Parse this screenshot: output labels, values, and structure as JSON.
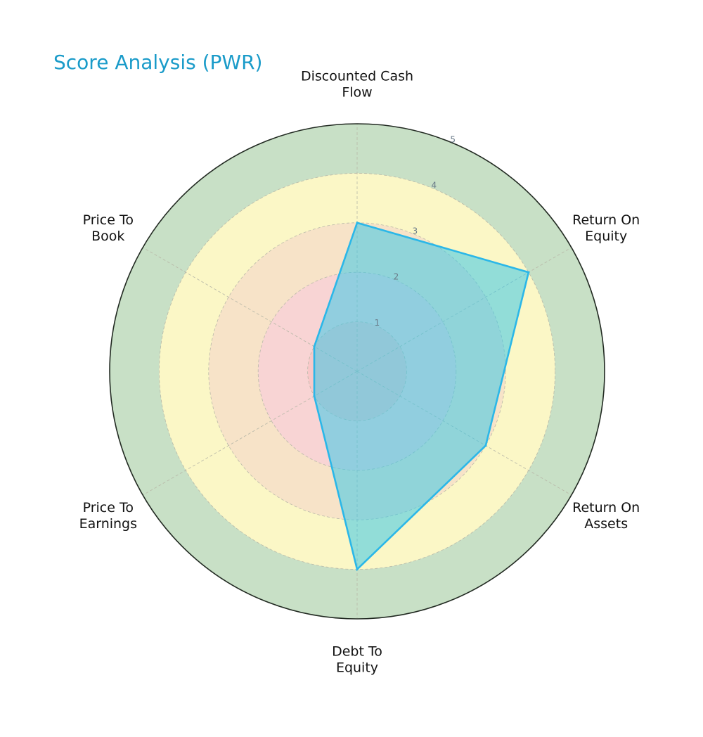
{
  "chart_data": {
    "type": "radar",
    "title": "Score Analysis (PWR)",
    "categories": [
      "Discounted Cash Flow",
      "Return On Equity",
      "Return On Assets",
      "Debt To Equity",
      "Price To Earnings",
      "Price To Book"
    ],
    "category_lines": [
      [
        "Discounted Cash",
        "Flow"
      ],
      [
        "Return On",
        "Equity"
      ],
      [
        "Return On",
        "Assets"
      ],
      [
        "Debt To",
        "Equity"
      ],
      [
        "Price To",
        "Earnings"
      ],
      [
        "Price To",
        "Book"
      ]
    ],
    "values": [
      3,
      4,
      3,
      4,
      1,
      1
    ],
    "rlim": [
      0,
      5
    ],
    "r_ticks": [
      "1",
      "2",
      "3",
      "4",
      "5"
    ],
    "bands": [
      {
        "from": 0,
        "to": 1,
        "color": "#f8c8c8"
      },
      {
        "from": 1,
        "to": 2,
        "color": "#f8d4d4"
      },
      {
        "from": 2,
        "to": 3,
        "color": "#f7e3c8"
      },
      {
        "from": 3,
        "to": 4,
        "color": "#fbf7c6"
      },
      {
        "from": 4,
        "to": 5,
        "color": "#c8e0c6"
      }
    ],
    "series_color": "#2bb7e8",
    "fill_color": "#3cc8e8",
    "grid": true
  }
}
